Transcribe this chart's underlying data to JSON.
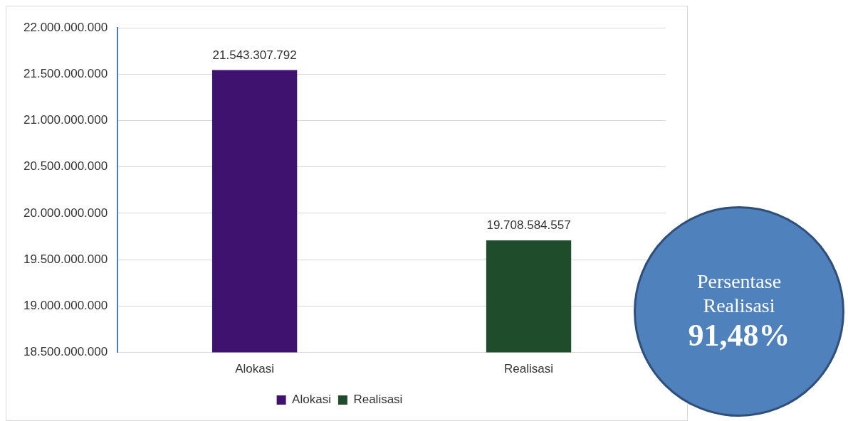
{
  "chart_data": {
    "type": "bar",
    "categories": [
      "Alokasi",
      "Realisasi"
    ],
    "series": [
      {
        "name": "Alokasi",
        "color": "#3f1270",
        "values": [
          21543307792,
          null
        ],
        "value_labels": [
          "21.543.307.792",
          null
        ]
      },
      {
        "name": "Realisasi",
        "color": "#1f4d2c",
        "values": [
          null,
          19708584557
        ],
        "value_labels": [
          null,
          "19.708.584.557"
        ]
      }
    ],
    "ylim": [
      18500000000,
      22000000000
    ],
    "yticks": [
      {
        "value": 18500000000,
        "label": "18.500.000.000"
      },
      {
        "value": 19000000000,
        "label": "19.000.000.000"
      },
      {
        "value": 19500000000,
        "label": "19.500.000.000"
      },
      {
        "value": 20000000000,
        "label": "20.000.000.000"
      },
      {
        "value": 20500000000,
        "label": "20.500.000.000"
      },
      {
        "value": 21000000000,
        "label": "21.000.000.000"
      },
      {
        "value": 21500000000,
        "label": "21.500.000.000"
      },
      {
        "value": 22000000000,
        "label": "22.000.000.000"
      }
    ],
    "grid": "y",
    "legend": "bottom",
    "annotations": [
      "Persentase Realisasi",
      "91,48%"
    ]
  }
}
